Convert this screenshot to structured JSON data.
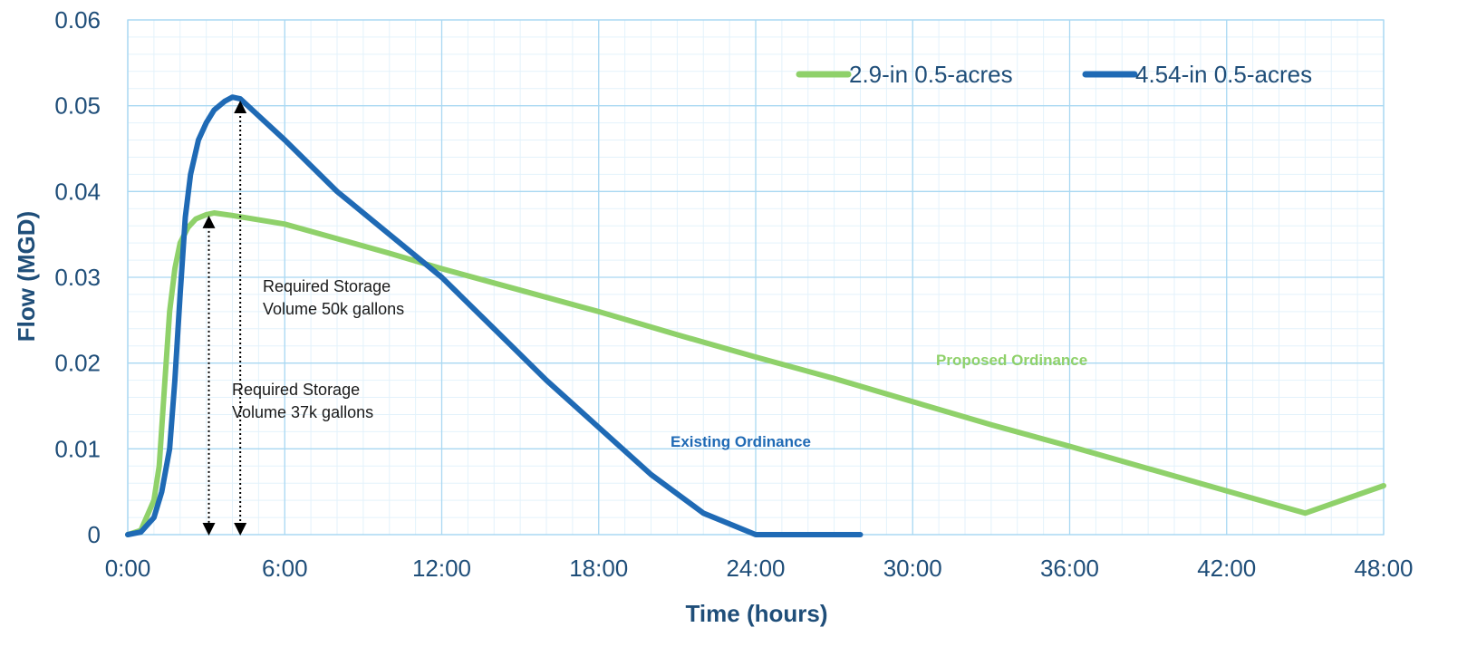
{
  "chart_data": {
    "type": "line",
    "xlabel": "Time (hours)",
    "ylabel": "Flow  (MGD)",
    "xlim": [
      0,
      48
    ],
    "ylim": [
      0,
      0.06
    ],
    "x_ticks": [
      {
        "value": 0,
        "label": "0:00"
      },
      {
        "value": 6,
        "label": "6:00"
      },
      {
        "value": 12,
        "label": "12:00"
      },
      {
        "value": 18,
        "label": "18:00"
      },
      {
        "value": 24,
        "label": "24:00"
      },
      {
        "value": 30,
        "label": "30:00"
      },
      {
        "value": 36,
        "label": "36:00"
      },
      {
        "value": 42,
        "label": "42:00"
      },
      {
        "value": 48,
        "label": "48:00"
      }
    ],
    "y_ticks": [
      {
        "value": 0,
        "label": "0"
      },
      {
        "value": 0.01,
        "label": "0.01"
      },
      {
        "value": 0.02,
        "label": "0.02"
      },
      {
        "value": 0.03,
        "label": "0.03"
      },
      {
        "value": 0.04,
        "label": "0.04"
      },
      {
        "value": 0.05,
        "label": "0.05"
      },
      {
        "value": 0.06,
        "label": "0.06"
      }
    ],
    "grid": true,
    "legend_position": "top-right",
    "series": [
      {
        "name": "2.9-in 0.5-acres",
        "color": "#8fd16a",
        "annotation": "Proposed Ordinance",
        "x": [
          0,
          0.5,
          1.0,
          1.2,
          1.4,
          1.6,
          1.8,
          2.0,
          2.3,
          2.6,
          3.0,
          3.3,
          4,
          6,
          8,
          10,
          12,
          15,
          18,
          21,
          24,
          27,
          30,
          33,
          36,
          39,
          42,
          45,
          48
        ],
        "y": [
          0,
          0.0005,
          0.004,
          0.008,
          0.017,
          0.026,
          0.031,
          0.034,
          0.0358,
          0.0368,
          0.0373,
          0.0375,
          0.0372,
          0.0362,
          0.0345,
          0.0328,
          0.031,
          0.0285,
          0.026,
          0.0233,
          0.0207,
          0.0182,
          0.0155,
          0.0128,
          0.0103,
          0.0077,
          0.0051,
          0.0025,
          0.0057
        ]
      },
      {
        "name": "4.54-in 0.5-acres",
        "color": "#1f6ab5",
        "annotation": "Existing Ordinance",
        "x": [
          0,
          0.5,
          1.0,
          1.3,
          1.6,
          1.8,
          2.0,
          2.2,
          2.4,
          2.7,
          3.0,
          3.3,
          3.7,
          4.0,
          4.3,
          6,
          8,
          10,
          12,
          14,
          16,
          18,
          20,
          22,
          24,
          24.5,
          26,
          28
        ],
        "y": [
          0,
          0.0003,
          0.002,
          0.005,
          0.01,
          0.018,
          0.028,
          0.037,
          0.042,
          0.046,
          0.048,
          0.0495,
          0.0505,
          0.051,
          0.0508,
          0.046,
          0.04,
          0.035,
          0.03,
          0.024,
          0.018,
          0.0125,
          0.007,
          0.0025,
          0,
          0,
          0,
          0
        ]
      }
    ],
    "annotations": [
      {
        "lines": [
          "Required Storage",
          "Volume 50k gallons"
        ],
        "arrow_x": 4.3,
        "arrow_y_top": 0.0507
      },
      {
        "lines": [
          "Required Storage",
          "Volume 37k gallons"
        ],
        "arrow_x": 3.1,
        "arrow_y_top": 0.0373
      }
    ]
  }
}
